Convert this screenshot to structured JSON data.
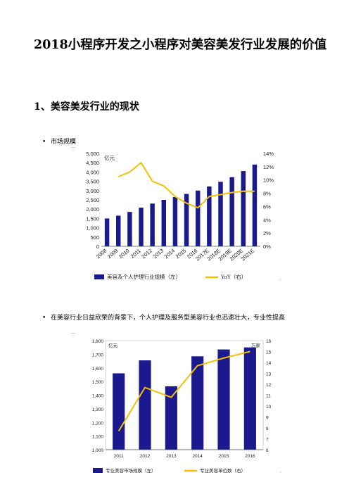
{
  "document": {
    "title": "2018小程序开发之小程序对美容美发行业发展的价值",
    "section_heading": "1、美容美发行业的现状",
    "bullets": [
      {
        "dot": "•",
        "text": "市场规模"
      },
      {
        "dot": "•",
        "text": "在美容行业日益欣荣的背景下，个人护理及服务型美容行业也迅速壮大，专业性提高"
      }
    ],
    "marks": [
      "—",
      "'",
      "—",
      "'"
    ]
  },
  "chart_data": [
    {
      "type": "bar",
      "title": "",
      "left_unit": "亿元",
      "categories": [
        "2008",
        "2009",
        "2010",
        "2011",
        "2012",
        "2013",
        "2014",
        "2015",
        "2016",
        "2017E",
        "2018E",
        "2019E",
        "2020E",
        "2021E"
      ],
      "left_ylim": [
        0,
        5000
      ],
      "left_ticks": [
        "0",
        "500",
        "1,000",
        "1,500",
        "2,000",
        "2,500",
        "3,000",
        "3,500",
        "4,000",
        "4,500",
        "5,000"
      ],
      "right_ylim": [
        0,
        14
      ],
      "right_ticks": [
        "0%",
        "2%",
        "4%",
        "6%",
        "8%",
        "10%",
        "12%",
        "14%"
      ],
      "series": [
        {
          "name": "美容及个人护理行业规模（左）",
          "kind": "bar",
          "axis": "left",
          "color": "#1a1a8e",
          "values": [
            1500,
            1650,
            1850,
            2080,
            2300,
            2500,
            2650,
            2820,
            3000,
            3220,
            3470,
            3720,
            4050,
            4400
          ]
        },
        {
          "name": "YoY（右）",
          "kind": "line",
          "axis": "right",
          "color": "#f5c000",
          "values": [
            null,
            10.5,
            11.2,
            12.6,
            9.8,
            9.1,
            7.5,
            6.5,
            5.8,
            7.5,
            7.8,
            8.1,
            8.3,
            8.3
          ]
        }
      ]
    },
    {
      "type": "bar",
      "title": "",
      "left_unit": "亿元",
      "right_unit": "万家",
      "categories": [
        "2011",
        "2012",
        "2013",
        "2014",
        "2015",
        "2016"
      ],
      "left_ylim": [
        1000,
        1800
      ],
      "left_ticks": [
        "1,000",
        "1,100",
        "1,200",
        "1,300",
        "1,400",
        "1,500",
        "1,600",
        "1,700",
        "1,800"
      ],
      "right_ylim": [
        6,
        16
      ],
      "right_ticks": [
        "6",
        "7",
        "8",
        "9",
        "10",
        "11",
        "12",
        "13",
        "14",
        "15",
        "16"
      ],
      "series": [
        {
          "name": "专业美容市场规模（左）",
          "kind": "bar",
          "axis": "left",
          "color": "#1a1a8e",
          "values": [
            1560,
            1655,
            1465,
            1685,
            1735,
            1750
          ]
        },
        {
          "name": "专业美容单位数（右）",
          "kind": "line",
          "axis": "right",
          "color": "#f5c000",
          "values": [
            7.7,
            11.7,
            10.8,
            13.7,
            14.4,
            15.0
          ]
        }
      ]
    }
  ]
}
